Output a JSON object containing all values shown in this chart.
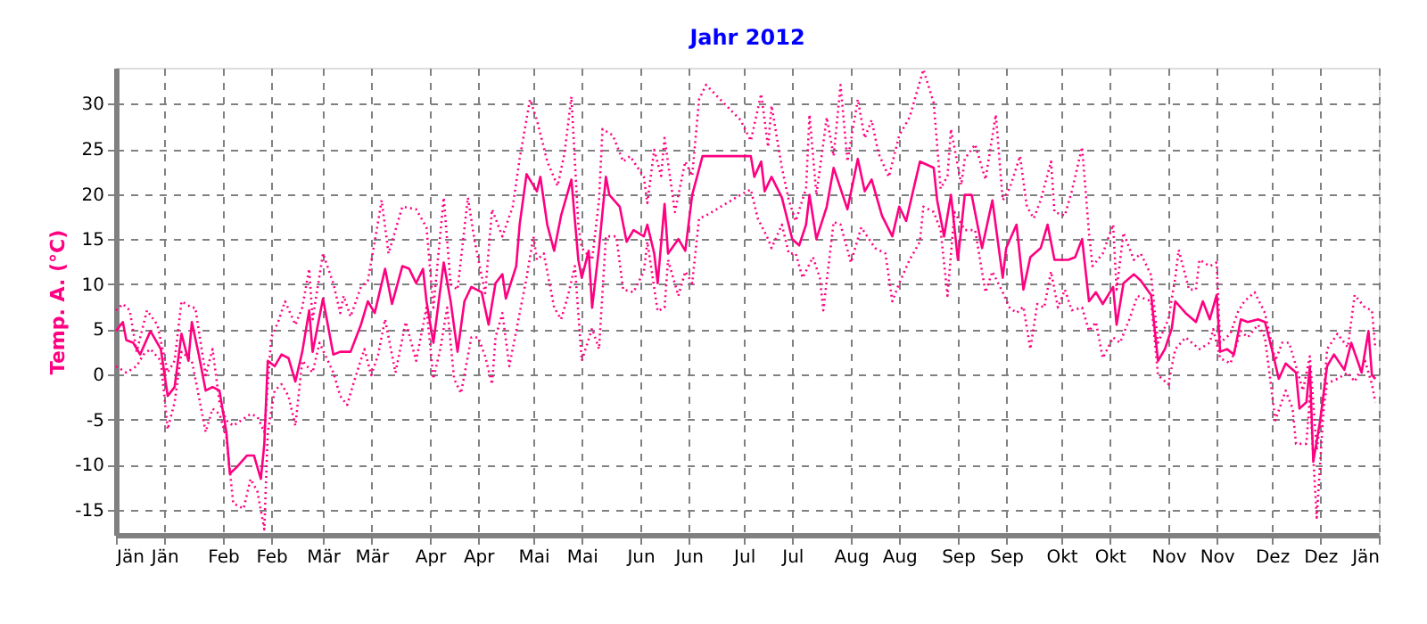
{
  "chart_data": {
    "type": "line",
    "title": "Jahr 2012",
    "ylabel": "Temp. A. (°C)",
    "xlim": [
      "2012-01-01",
      "2013-01-01"
    ],
    "ylim": [
      -17.8,
      34
    ],
    "yticks": [
      -15,
      -10,
      -5,
      0,
      5,
      10,
      15,
      20,
      25,
      30
    ],
    "xticks": [
      {
        "value": "2012-01-01",
        "label": "Jän"
      },
      {
        "value": "2012-01-15",
        "label": "Jän"
      },
      {
        "value": "2012-02-01",
        "label": "Feb"
      },
      {
        "value": "2012-02-15",
        "label": "Feb"
      },
      {
        "value": "2012-03-01",
        "label": "Mär"
      },
      {
        "value": "2012-03-15",
        "label": "Mär"
      },
      {
        "value": "2012-04-01",
        "label": "Apr"
      },
      {
        "value": "2012-04-15",
        "label": "Apr"
      },
      {
        "value": "2012-05-01",
        "label": "Mai"
      },
      {
        "value": "2012-05-15",
        "label": "Mai"
      },
      {
        "value": "2012-06-01",
        "label": "Jun"
      },
      {
        "value": "2012-06-15",
        "label": "Jun"
      },
      {
        "value": "2012-07-01",
        "label": "Jul"
      },
      {
        "value": "2012-07-15",
        "label": "Jul"
      },
      {
        "value": "2012-08-01",
        "label": "Aug"
      },
      {
        "value": "2012-08-15",
        "label": "Aug"
      },
      {
        "value": "2012-09-01",
        "label": "Sep"
      },
      {
        "value": "2012-09-15",
        "label": "Sep"
      },
      {
        "value": "2012-10-01",
        "label": "Okt"
      },
      {
        "value": "2012-10-15",
        "label": "Okt"
      },
      {
        "value": "2012-11-01",
        "label": "Nov"
      },
      {
        "value": "2012-11-15",
        "label": "Nov"
      },
      {
        "value": "2012-12-01",
        "label": "Dez"
      },
      {
        "value": "2012-12-15",
        "label": "Dez"
      },
      {
        "value": "2013-01-01",
        "label": "Jän"
      }
    ],
    "grid": true,
    "marker": "none",
    "series": [
      {
        "color": "#ff0080",
        "line_style": "solid",
        "x": [
          "2012-01-01",
          "2012-01-03",
          "2012-01-04",
          "2012-01-06",
          "2012-01-08",
          "2012-01-11",
          "2012-01-14",
          "2012-01-16",
          "2012-01-18",
          "2012-01-20",
          "2012-01-22",
          "2012-01-23",
          "2012-01-25",
          "2012-01-27",
          "2012-01-29",
          "2012-01-31",
          "2012-02-02",
          "2012-02-03",
          "2012-02-05",
          "2012-02-08",
          "2012-02-10",
          "2012-02-12",
          "2012-02-13",
          "2012-02-14",
          "2012-02-16",
          "2012-02-18",
          "2012-02-20",
          "2012-02-22",
          "2012-02-24",
          "2012-02-26",
          "2012-02-27",
          "2012-03-01",
          "2012-03-04",
          "2012-03-06",
          "2012-03-09",
          "2012-03-12",
          "2012-03-14",
          "2012-03-16",
          "2012-03-19",
          "2012-03-21",
          "2012-03-24",
          "2012-03-26",
          "2012-03-28",
          "2012-03-30",
          "2012-03-31",
          "2012-04-02",
          "2012-04-05",
          "2012-04-07",
          "2012-04-09",
          "2012-04-11",
          "2012-04-13",
          "2012-04-16",
          "2012-04-18",
          "2012-04-20",
          "2012-04-22",
          "2012-04-23",
          "2012-04-26",
          "2012-04-27",
          "2012-04-29",
          "2012-05-02",
          "2012-05-03",
          "2012-05-05",
          "2012-05-07",
          "2012-05-09",
          "2012-05-12",
          "2012-05-14",
          "2012-05-15",
          "2012-05-17",
          "2012-05-18",
          "2012-05-20",
          "2012-05-22",
          "2012-05-23",
          "2012-05-26",
          "2012-05-28",
          "2012-05-30",
          "2012-06-02",
          "2012-06-03",
          "2012-06-05",
          "2012-06-06",
          "2012-06-08",
          "2012-06-09",
          "2012-06-12",
          "2012-06-14",
          "2012-06-16",
          "2012-06-19",
          "2012-07-03",
          "2012-07-04",
          "2012-07-06",
          "2012-07-07",
          "2012-07-09",
          "2012-07-12",
          "2012-07-15",
          "2012-07-17",
          "2012-07-19",
          "2012-07-20",
          "2012-07-22",
          "2012-07-25",
          "2012-07-27",
          "2012-07-29",
          "2012-07-31",
          "2012-08-03",
          "2012-08-05",
          "2012-08-07",
          "2012-08-10",
          "2012-08-13",
          "2012-08-15",
          "2012-08-17",
          "2012-08-21",
          "2012-08-25",
          "2012-08-26",
          "2012-08-28",
          "2012-08-30",
          "2012-09-01",
          "2012-09-03",
          "2012-09-05",
          "2012-09-08",
          "2012-09-11",
          "2012-09-14",
          "2012-09-15",
          "2012-09-18",
          "2012-09-20",
          "2012-09-22",
          "2012-09-25",
          "2012-09-27",
          "2012-09-29",
          "2012-10-03",
          "2012-10-05",
          "2012-10-07",
          "2012-10-09",
          "2012-10-11",
          "2012-10-13",
          "2012-10-16",
          "2012-10-17",
          "2012-10-19",
          "2012-10-22",
          "2012-10-24",
          "2012-10-27",
          "2012-10-29",
          "2012-10-31",
          "2012-11-02",
          "2012-11-03",
          "2012-11-06",
          "2012-11-09",
          "2012-11-11",
          "2012-11-13",
          "2012-11-15",
          "2012-11-16",
          "2012-11-18",
          "2012-11-20",
          "2012-11-22",
          "2012-11-24",
          "2012-11-27",
          "2012-11-29",
          "2012-12-01",
          "2012-12-03",
          "2012-12-05",
          "2012-12-08",
          "2012-12-09",
          "2012-12-11",
          "2012-12-12",
          "2012-12-13",
          "2012-12-15",
          "2012-12-17",
          "2012-12-19",
          "2012-12-22",
          "2012-12-24",
          "2012-12-27",
          "2012-12-29",
          "2012-12-30",
          "2012-12-31"
        ],
        "values": [
          4.8,
          5.8,
          3.8,
          3.5,
          2.2,
          4.8,
          2.8,
          -2.4,
          -1.4,
          4.5,
          1.5,
          5.8,
          2.2,
          -1.8,
          -1.4,
          -1.8,
          -6.4,
          -11,
          -10.3,
          -9,
          -9,
          -11.6,
          -7.7,
          1.5,
          0.9,
          2.2,
          1.8,
          -0.8,
          2.5,
          7.1,
          2.5,
          8.4,
          2.2,
          2.5,
          2.5,
          5.5,
          8.1,
          6.8,
          11.7,
          7.8,
          12,
          11.7,
          10.1,
          11.7,
          8.1,
          3.5,
          12.4,
          8.1,
          2.5,
          8.1,
          9.7,
          9.1,
          5.5,
          10.1,
          11.1,
          8.4,
          12,
          16.6,
          22.2,
          20.3,
          21.9,
          16.6,
          13.7,
          17.6,
          21.6,
          12.7,
          10.7,
          13.7,
          7.4,
          14,
          21.9,
          19.9,
          18.6,
          14.7,
          16,
          15.3,
          16.6,
          13.4,
          10.1,
          18.9,
          13.4,
          15,
          13.7,
          19.9,
          24.2,
          24.2,
          21.9,
          23.6,
          20.3,
          21.9,
          19.6,
          15,
          14.3,
          16.6,
          19.9,
          15,
          18.6,
          22.9,
          20.6,
          18.3,
          23.9,
          20.3,
          21.6,
          17.6,
          15.3,
          18.6,
          17,
          23.6,
          22.9,
          19.3,
          15.3,
          19.9,
          12.7,
          19.9,
          19.9,
          14,
          19.3,
          10.7,
          14,
          16.6,
          9.4,
          13,
          14,
          16.6,
          12.7,
          12.7,
          13,
          15,
          8.1,
          9.1,
          7.8,
          9.7,
          5.5,
          10.1,
          11.1,
          10.4,
          8.8,
          1.5,
          2.8,
          5.1,
          8.1,
          6.8,
          5.8,
          8.1,
          6.1,
          8.8,
          2.5,
          2.8,
          2.2,
          6.1,
          5.8,
          6.1,
          5.8,
          2.8,
          -0.5,
          1.2,
          0.2,
          -3.8,
          -3.1,
          0.9,
          -9.7,
          -5.1,
          0.9,
          2.2,
          0.5,
          3.5,
          0.2,
          4.8,
          -0.1,
          -0.5
        ]
      },
      {
        "color": "#ff0080",
        "line_style": "dotted",
        "x": [
          "2012-01-01",
          "2012-01-03",
          "2012-01-05",
          "2012-01-07",
          "2012-01-10",
          "2012-01-13",
          "2012-01-16",
          "2012-01-18",
          "2012-01-20",
          "2012-01-23",
          "2012-01-24",
          "2012-01-27",
          "2012-01-29",
          "2012-01-31",
          "2012-02-02",
          "2012-02-04",
          "2012-02-09",
          "2012-02-11",
          "2012-02-13",
          "2012-02-15",
          "2012-02-17",
          "2012-02-19",
          "2012-02-22",
          "2012-02-24",
          "2012-02-26",
          "2012-02-27",
          "2012-03-01",
          "2012-03-04",
          "2012-03-06",
          "2012-03-07",
          "2012-03-09",
          "2012-03-12",
          "2012-03-14",
          "2012-03-16",
          "2012-03-18",
          "2012-03-20",
          "2012-03-24",
          "2012-03-28",
          "2012-03-31",
          "2012-04-02",
          "2012-04-05",
          "2012-04-07",
          "2012-04-09",
          "2012-04-12",
          "2012-04-14",
          "2012-04-17",
          "2012-04-19",
          "2012-04-22",
          "2012-04-25",
          "2012-04-27",
          "2012-04-30",
          "2012-05-02",
          "2012-05-05",
          "2012-05-08",
          "2012-05-10",
          "2012-05-12",
          "2012-05-14",
          "2012-05-15",
          "2012-05-18",
          "2012-05-20",
          "2012-05-21",
          "2012-05-24",
          "2012-05-27",
          "2012-05-29",
          "2012-06-02",
          "2012-06-03",
          "2012-06-05",
          "2012-06-07",
          "2012-06-08",
          "2012-06-11",
          "2012-06-14",
          "2012-06-16",
          "2012-06-18",
          "2012-06-20",
          "2012-06-30",
          "2012-07-03",
          "2012-07-06",
          "2012-07-08",
          "2012-07-09",
          "2012-07-12",
          "2012-07-14",
          "2012-07-16",
          "2012-07-19",
          "2012-07-20",
          "2012-07-22",
          "2012-07-25",
          "2012-07-27",
          "2012-07-29",
          "2012-07-31",
          "2012-08-03",
          "2012-08-05",
          "2012-08-07",
          "2012-08-09",
          "2012-08-12",
          "2012-08-15",
          "2012-08-18",
          "2012-08-22",
          "2012-08-25",
          "2012-08-27",
          "2012-08-29",
          "2012-08-30",
          "2012-09-02",
          "2012-09-03",
          "2012-09-06",
          "2012-09-09",
          "2012-09-12",
          "2012-09-14",
          "2012-09-16",
          "2012-09-19",
          "2012-09-21",
          "2012-09-23",
          "2012-09-25",
          "2012-09-28",
          "2012-09-29",
          "2012-10-02",
          "2012-10-04",
          "2012-10-07",
          "2012-10-09",
          "2012-10-10",
          "2012-10-13",
          "2012-10-16",
          "2012-10-17",
          "2012-10-19",
          "2012-10-22",
          "2012-10-24",
          "2012-10-27",
          "2012-10-29",
          "2012-11-01",
          "2012-11-03",
          "2012-11-04",
          "2012-11-07",
          "2012-11-09",
          "2012-11-10",
          "2012-11-13",
          "2012-11-15",
          "2012-11-16",
          "2012-11-19",
          "2012-11-21",
          "2012-11-23",
          "2012-11-26",
          "2012-11-29",
          "2012-12-02",
          "2012-12-04",
          "2012-12-06",
          "2012-12-08",
          "2012-12-10",
          "2012-12-12",
          "2012-12-14",
          "2012-12-16",
          "2012-12-17",
          "2012-12-20",
          "2012-12-23",
          "2012-12-25",
          "2012-12-28",
          "2012-12-30",
          "2012-12-31"
        ],
        "values": [
          7.1,
          7.8,
          7.1,
          2.5,
          7.1,
          5.5,
          0.2,
          1.5,
          8.1,
          7.4,
          7.4,
          -0.1,
          2.8,
          -3.1,
          -5.1,
          -5.7,
          -4.4,
          -4.7,
          -6.4,
          4.1,
          5.8,
          8.1,
          5.5,
          7.4,
          11.7,
          6.1,
          13.4,
          10.1,
          6.8,
          8.7,
          6.4,
          9.7,
          10.4,
          14.7,
          19.3,
          13.4,
          18.6,
          18.3,
          16.3,
          7.4,
          19.6,
          10,
          9.4,
          19.6,
          14.7,
          9,
          18.3,
          15.3,
          18.6,
          23.9,
          30.5,
          28.2,
          23.6,
          20.9,
          24.5,
          30.8,
          16.6,
          14,
          12.7,
          19.3,
          27.2,
          26.5,
          23.6,
          24.2,
          21.9,
          19,
          24.9,
          22,
          26.2,
          18,
          23.6,
          22,
          30.5,
          32.1,
          28.2,
          25.9,
          31.1,
          25.2,
          29.8,
          22.9,
          19.3,
          17,
          20.6,
          28.8,
          19.9,
          28.5,
          24.2,
          32.1,
          23.6,
          30.5,
          26.2,
          28.2,
          24.5,
          21.9,
          26.5,
          28.5,
          33.8,
          30.1,
          20.6,
          22,
          27.2,
          21,
          23.9,
          25.5,
          21.6,
          28.8,
          19.3,
          20.6,
          24.2,
          18.6,
          17.3,
          19.3,
          23.6,
          18,
          17.6,
          20.3,
          25.2,
          15.7,
          12,
          13.4,
          16.6,
          9.4,
          15.7,
          12.7,
          13.4,
          11,
          3.5,
          6.1,
          10.7,
          13.8,
          9.4,
          9.4,
          12.7,
          12,
          12.4,
          3.5,
          4.5,
          6.8,
          8.1,
          9.1,
          6.8,
          1.5,
          3.5,
          3.5,
          0.9,
          -1.8,
          2,
          -8.4,
          -2.4,
          2.8,
          4.5,
          3,
          8.8,
          7.4,
          7.1,
          2.8
        ]
      },
      {
        "color": "#ff0080",
        "line_style": "dotted",
        "x": [
          "2012-01-01",
          "2012-01-04",
          "2012-01-07",
          "2012-01-09",
          "2012-01-11",
          "2012-01-14",
          "2012-01-16",
          "2012-01-18",
          "2012-01-20",
          "2012-01-23",
          "2012-01-25",
          "2012-01-27",
          "2012-01-29",
          "2012-01-31",
          "2012-02-02",
          "2012-02-04",
          "2012-02-07",
          "2012-02-09",
          "2012-02-11",
          "2012-02-13",
          "2012-02-14",
          "2012-02-16",
          "2012-02-18",
          "2012-02-20",
          "2012-02-22",
          "2012-02-24",
          "2012-02-27",
          "2012-02-29",
          "2012-03-04",
          "2012-03-06",
          "2012-03-08",
          "2012-03-10",
          "2012-03-13",
          "2012-03-15",
          "2012-03-17",
          "2012-03-19",
          "2012-03-22",
          "2012-03-25",
          "2012-03-28",
          "2012-03-31",
          "2012-04-02",
          "2012-04-04",
          "2012-04-06",
          "2012-04-08",
          "2012-04-10",
          "2012-04-13",
          "2012-04-15",
          "2012-04-17",
          "2012-04-19",
          "2012-04-20",
          "2012-04-22",
          "2012-04-24",
          "2012-04-26",
          "2012-04-29",
          "2012-05-01",
          "2012-05-02",
          "2012-05-04",
          "2012-05-07",
          "2012-05-09",
          "2012-05-11",
          "2012-05-13",
          "2012-05-15",
          "2012-05-18",
          "2012-05-20",
          "2012-05-22",
          "2012-05-25",
          "2012-05-27",
          "2012-05-30",
          "2012-06-02",
          "2012-06-03",
          "2012-06-06",
          "2012-06-08",
          "2012-06-09",
          "2012-06-12",
          "2012-06-14",
          "2012-06-16",
          "2012-06-18",
          "2012-06-20",
          "2012-06-30",
          "2012-07-03",
          "2012-07-05",
          "2012-07-08",
          "2012-07-09",
          "2012-07-12",
          "2012-07-14",
          "2012-07-16",
          "2012-07-18",
          "2012-07-21",
          "2012-07-23",
          "2012-07-24",
          "2012-07-27",
          "2012-07-29",
          "2012-08-01",
          "2012-08-04",
          "2012-08-08",
          "2012-08-11",
          "2012-08-13",
          "2012-08-15",
          "2012-08-18",
          "2012-08-21",
          "2012-08-22",
          "2012-08-25",
          "2012-08-27",
          "2012-08-29",
          "2012-08-31",
          "2012-09-03",
          "2012-09-06",
          "2012-09-09",
          "2012-09-11",
          "2012-09-14",
          "2012-09-16",
          "2012-09-18",
          "2012-09-20",
          "2012-09-22",
          "2012-09-24",
          "2012-09-26",
          "2012-09-28",
          "2012-09-30",
          "2012-10-02",
          "2012-10-04",
          "2012-10-07",
          "2012-10-09",
          "2012-10-11",
          "2012-10-13",
          "2012-10-16",
          "2012-10-18",
          "2012-10-21",
          "2012-10-23",
          "2012-10-27",
          "2012-10-29",
          "2012-11-01",
          "2012-11-03",
          "2012-11-06",
          "2012-11-10",
          "2012-11-13",
          "2012-11-14",
          "2012-11-16",
          "2012-11-19",
          "2012-11-22",
          "2012-11-24",
          "2012-11-27",
          "2012-11-29",
          "2012-12-02",
          "2012-12-05",
          "2012-12-07",
          "2012-12-08",
          "2012-12-11",
          "2012-12-12",
          "2012-12-14",
          "2012-12-16",
          "2012-12-17",
          "2012-12-20",
          "2012-12-23",
          "2012-12-25",
          "2012-12-28",
          "2012-12-30",
          "2012-12-31"
        ],
        "values": [
          0.9,
          0.2,
          0.9,
          2.2,
          2.8,
          1.5,
          -6.1,
          -3.1,
          2.5,
          1.5,
          -2.4,
          -6.4,
          -3.8,
          -4.4,
          -7,
          -14.3,
          -14.9,
          -11.6,
          -13,
          -17.2,
          -6.4,
          -1.8,
          -1.1,
          -2.4,
          -5.7,
          1.5,
          0.2,
          3.5,
          0.2,
          -2.4,
          -3.4,
          -0.8,
          2.8,
          -0.1,
          2.2,
          6.1,
          0.2,
          5.8,
          1.5,
          7.4,
          -0.5,
          2.8,
          7.4,
          -0.5,
          -2.1,
          4.1,
          4.1,
          2,
          -1.1,
          4.1,
          6.8,
          0.9,
          4.8,
          10.7,
          15.3,
          12.7,
          13.4,
          7.4,
          6.1,
          8.7,
          12,
          1.5,
          5.1,
          2.8,
          15.3,
          15.3,
          9.4,
          9.1,
          11.4,
          14.7,
          7,
          7.4,
          12.7,
          8.7,
          11.4,
          10.1,
          17.3,
          17.6,
          19.9,
          20.5,
          17.3,
          15,
          14,
          16.6,
          13.4,
          13.4,
          10.7,
          13,
          10.7,
          7.1,
          16.9,
          16.6,
          12.4,
          16.3,
          14,
          13.4,
          8.1,
          10.1,
          12.7,
          14.7,
          18.6,
          18,
          16,
          8.7,
          18,
          16,
          16,
          9.1,
          11.4,
          9.1,
          7.4,
          6.8,
          7.5,
          2.8,
          7.8,
          7.4,
          11.4,
          7.4,
          9.4,
          7.1,
          7.4,
          4.8,
          5.8,
          1.8,
          4.1,
          3.5,
          6.4,
          8.7,
          8.1,
          -0.1,
          -1.1,
          2.8,
          4.1,
          2.8,
          3.5,
          5,
          1.8,
          1.2,
          4.8,
          4.1,
          5.5,
          4.1,
          -5.1,
          -1.8,
          -3.8,
          -7.7,
          -7.7,
          -2.4,
          -15.9,
          -3.8,
          -1,
          -0.5,
          0.2,
          -0.8,
          1.5,
          -1.1,
          -3.1
        ]
      }
    ]
  }
}
